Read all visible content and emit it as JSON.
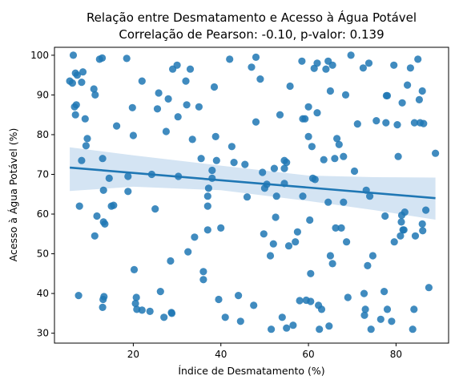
{
  "chart_data": {
    "type": "scatter",
    "title": "Relação entre Desmatamento e Acesso à Água Potável",
    "subtitle": "Correlação de Pearson: -0.10, p-valor: 0.139",
    "xlabel": "Índice de Desmatamento (%)",
    "ylabel": "Acesso à Água Potável (%)",
    "xlim": [
      2,
      92
    ],
    "ylim": [
      27.5,
      102
    ],
    "x_ticks": [
      20,
      40,
      60,
      80
    ],
    "y_ticks": [
      30,
      40,
      50,
      60,
      70,
      80,
      90,
      100
    ],
    "grid": false,
    "colors": {
      "points": "#1f77b4",
      "line": "#1f77b4",
      "band": "#c6dbef"
    },
    "regression": {
      "x": [
        5.5,
        89
      ],
      "y": [
        71.7,
        64.0
      ],
      "ci_lower": [
        65.8,
        58.6
      ],
      "ci_upper": [
        76.8,
        69.2
      ],
      "ci_x": [
        5.5,
        20,
        40,
        60,
        75,
        89
      ],
      "ci_lower_curve": [
        65.8,
        66.9,
        66.0,
        63.3,
        61.0,
        58.6
      ],
      "ci_upper_curve": [
        76.8,
        74.8,
        72.2,
        69.7,
        69.3,
        69.2
      ]
    },
    "points": [
      [
        5.5,
        93.5
      ],
      [
        6.3,
        100
      ],
      [
        6.8,
        95.5
      ],
      [
        6.1,
        93
      ],
      [
        6.6,
        87
      ],
      [
        6.8,
        85
      ],
      [
        7,
        87.5
      ],
      [
        7.2,
        95
      ],
      [
        8.2,
        93.2
      ],
      [
        8.5,
        95.8
      ],
      [
        9,
        84
      ],
      [
        9.2,
        77.2
      ],
      [
        9.5,
        79
      ],
      [
        8.2,
        73.5
      ],
      [
        7.7,
        62
      ],
      [
        7.5,
        39.5
      ],
      [
        11,
        91.5
      ],
      [
        11.3,
        90
      ],
      [
        11.2,
        54.5
      ],
      [
        11.7,
        59.5
      ],
      [
        12.3,
        99
      ],
      [
        12.9,
        99.3
      ],
      [
        13,
        74
      ],
      [
        13.2,
        66
      ],
      [
        13.2,
        58
      ],
      [
        13.5,
        57.5
      ],
      [
        14.5,
        69
      ],
      [
        15,
        62
      ],
      [
        15.5,
        62.2
      ],
      [
        16.2,
        82.2
      ],
      [
        13,
        36.5
      ],
      [
        13.1,
        38.5
      ],
      [
        13.3,
        39.2
      ],
      [
        18.5,
        99.2
      ],
      [
        18.8,
        69.5
      ],
      [
        18.8,
        65.7
      ],
      [
        19.8,
        86.8
      ],
      [
        20,
        79.8
      ],
      [
        20.2,
        46
      ],
      [
        20.5,
        37.5
      ],
      [
        20.7,
        39
      ],
      [
        20.8,
        36
      ],
      [
        22,
        93.5
      ],
      [
        22,
        35.8
      ],
      [
        23.8,
        35.5
      ],
      [
        24.2,
        70
      ],
      [
        25,
        61.3
      ],
      [
        25.5,
        86.5
      ],
      [
        25.8,
        90.5
      ],
      [
        26.2,
        40.5
      ],
      [
        27,
        34
      ],
      [
        27.5,
        80.8
      ],
      [
        28,
        89
      ],
      [
        28.5,
        48.2
      ],
      [
        28.7,
        35.2
      ],
      [
        28.8,
        35
      ],
      [
        29,
        96.5
      ],
      [
        30,
        97.5
      ],
      [
        30.2,
        84.5
      ],
      [
        30.3,
        69.5
      ],
      [
        32,
        93.5
      ],
      [
        32.2,
        87.5
      ],
      [
        32.5,
        50.5
      ],
      [
        33,
        96.5
      ],
      [
        33.5,
        78.8
      ],
      [
        34,
        54.2
      ],
      [
        35,
        87
      ],
      [
        35.5,
        74
      ],
      [
        36,
        43.5
      ],
      [
        36,
        45.5
      ],
      [
        37,
        56
      ],
      [
        37,
        62
      ],
      [
        37,
        64.5
      ],
      [
        37.2,
        66.5
      ],
      [
        38,
        69
      ],
      [
        38,
        71
      ],
      [
        38.5,
        92
      ],
      [
        38.8,
        79.5
      ],
      [
        39,
        73.5
      ],
      [
        39.5,
        38.5
      ],
      [
        40,
        56.5
      ],
      [
        41,
        34
      ],
      [
        42,
        99
      ],
      [
        42.5,
        77
      ],
      [
        43,
        73
      ],
      [
        44,
        39.5
      ],
      [
        44.5,
        33
      ],
      [
        45.5,
        72.5
      ],
      [
        46,
        64.3
      ],
      [
        47,
        97
      ],
      [
        47.5,
        37
      ],
      [
        48,
        99.5
      ],
      [
        48,
        83.2
      ],
      [
        49,
        94
      ],
      [
        49.5,
        70.5
      ],
      [
        49.8,
        55
      ],
      [
        50,
        66.5
      ],
      [
        50.5,
        67.5
      ],
      [
        51.3,
        49.5
      ],
      [
        51.5,
        31
      ],
      [
        52,
        52.5
      ],
      [
        52.2,
        71.5
      ],
      [
        52.5,
        59.2
      ],
      [
        52.7,
        64.5
      ],
      [
        53.5,
        85
      ],
      [
        54,
        34
      ],
      [
        54.5,
        71.5
      ],
      [
        54.5,
        73.5
      ],
      [
        54.5,
        67.7
      ],
      [
        55,
        73
      ],
      [
        55,
        31.3
      ],
      [
        55.5,
        52
      ],
      [
        55.8,
        92.2
      ],
      [
        56.5,
        32
      ],
      [
        57,
        53
      ],
      [
        57.5,
        55.5
      ],
      [
        58,
        38.2
      ],
      [
        58.5,
        98.5
      ],
      [
        58.7,
        84
      ],
      [
        58.7,
        64.5
      ],
      [
        59.2,
        84
      ],
      [
        59.5,
        38.3
      ],
      [
        60,
        87
      ],
      [
        60,
        79.5
      ],
      [
        60.3,
        58.5
      ],
      [
        60.5,
        45
      ],
      [
        60.5,
        38
      ],
      [
        60.8,
        77
      ],
      [
        61,
        69
      ],
      [
        61.3,
        96.7
      ],
      [
        61.5,
        68.7
      ],
      [
        62,
        98
      ],
      [
        62,
        85.5
      ],
      [
        62.3,
        37
      ],
      [
        62.5,
        31
      ],
      [
        63,
        36
      ],
      [
        63.5,
        73.7
      ],
      [
        64,
        96.5
      ],
      [
        64.5,
        98.5
      ],
      [
        64.5,
        63
      ],
      [
        64.7,
        31.8
      ],
      [
        65,
        91
      ],
      [
        65,
        49.5
      ],
      [
        65.5,
        47.5
      ],
      [
        65.5,
        97.5
      ],
      [
        66,
        74
      ],
      [
        66.2,
        56.5
      ],
      [
        66.5,
        79
      ],
      [
        67,
        77.5
      ],
      [
        67.5,
        56.5
      ],
      [
        68,
        74.5
      ],
      [
        68,
        63
      ],
      [
        68.5,
        90
      ],
      [
        68.7,
        53
      ],
      [
        69,
        39
      ],
      [
        69.7,
        100
      ],
      [
        70.5,
        70.8
      ],
      [
        71.2,
        82.7
      ],
      [
        72.5,
        96.8
      ],
      [
        72.7,
        40
      ],
      [
        72.8,
        34.5
      ],
      [
        73,
        36
      ],
      [
        73.2,
        66
      ],
      [
        73.5,
        47
      ],
      [
        73.8,
        98
      ],
      [
        74,
        64.5
      ],
      [
        74.3,
        31
      ],
      [
        74.7,
        49.5
      ],
      [
        75.5,
        83.5
      ],
      [
        76.5,
        33.5
      ],
      [
        77.3,
        40.5
      ],
      [
        77.5,
        59.5
      ],
      [
        77.7,
        83
      ],
      [
        77.8,
        89.8
      ],
      [
        78,
        89.8
      ],
      [
        78,
        36
      ],
      [
        79,
        33
      ],
      [
        79.5,
        97.5
      ],
      [
        79.6,
        53
      ],
      [
        80.3,
        82.5
      ],
      [
        80.5,
        74.5
      ],
      [
        81,
        54.5
      ],
      [
        81.2,
        58
      ],
      [
        81.3,
        59.7
      ],
      [
        81.4,
        88
      ],
      [
        81.6,
        56
      ],
      [
        81.8,
        56
      ],
      [
        82,
        60.5
      ],
      [
        82.6,
        92.5
      ],
      [
        83.3,
        96.8
      ],
      [
        83.8,
        31
      ],
      [
        84.1,
        36
      ],
      [
        84.2,
        83
      ],
      [
        84.4,
        54.5
      ],
      [
        85,
        99
      ],
      [
        85.3,
        88.8
      ],
      [
        85.5,
        83
      ],
      [
        86,
        91
      ],
      [
        86,
        57.5
      ],
      [
        86.1,
        55.8
      ],
      [
        86.3,
        82.8
      ],
      [
        86.8,
        61
      ],
      [
        87.5,
        41.5
      ],
      [
        89,
        75.3
      ]
    ]
  }
}
